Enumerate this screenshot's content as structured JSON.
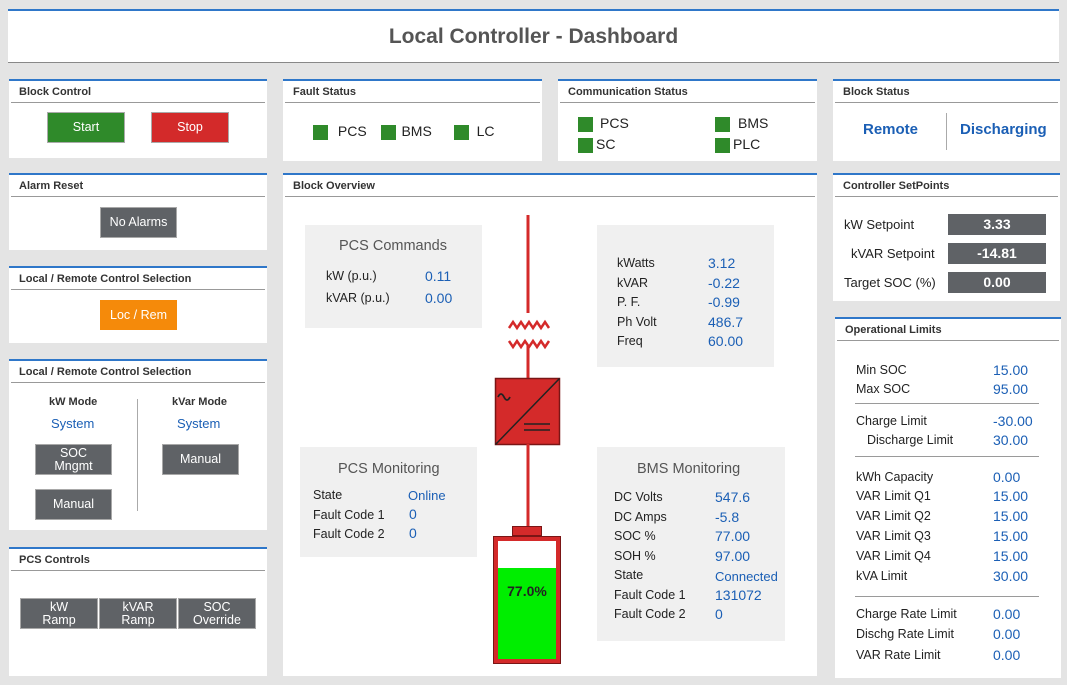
{
  "header": {
    "title": "Local Controller - Dashboard"
  },
  "block_control": {
    "title": "Block Control",
    "start_label": "Start",
    "stop_label": "Stop"
  },
  "fault_status": {
    "title": "Fault Status",
    "items": [
      "PCS",
      "BMS",
      "LC"
    ]
  },
  "communication_status": {
    "title": "Communication Status",
    "items": [
      "PCS",
      "BMS",
      "SC",
      "PLC"
    ]
  },
  "block_status": {
    "title": "Block Status",
    "mode": "Remote",
    "state": "Discharging"
  },
  "alarm_reset": {
    "title": "Alarm Reset",
    "button_label": "No Alarms"
  },
  "loc_rem": {
    "title": "Local / Remote Control Selection",
    "button_label": "Loc / Rem"
  },
  "mode_select": {
    "title": "Local / Remote Control Selection",
    "kw_mode_label": "kW Mode",
    "kw_mode_value": "System",
    "kvar_mode_label": "kVar Mode",
    "kvar_mode_value": "System",
    "soc_mngmt_label": "SOC Mngmt",
    "manual_label": "Manual",
    "kvar_manual_label": "Manual"
  },
  "pcs_controls": {
    "title": "PCS Controls",
    "kw_ramp": "kW Ramp",
    "kvar_ramp": "kVAR Ramp",
    "soc_override": "SOC Override"
  },
  "block_overview": {
    "title": "Block Overview",
    "pcs_commands": {
      "title": "PCS Commands",
      "rows": [
        {
          "label": "kW (p.u.)",
          "value": "0.11"
        },
        {
          "label": "kVAR (p.u.)",
          "value": "0.00"
        }
      ]
    },
    "grid_meter": {
      "rows": [
        {
          "label": "kWatts",
          "value": "3.12"
        },
        {
          "label": "kVAR",
          "value": "-0.22"
        },
        {
          "label": "P. F.",
          "value": "-0.99"
        },
        {
          "label": "Ph Volt",
          "value": "486.7"
        },
        {
          "label": "Freq",
          "value": "60.00"
        }
      ]
    },
    "pcs_monitoring": {
      "title": "PCS Monitoring",
      "rows": [
        {
          "label": "State",
          "value": "Online"
        },
        {
          "label": "Fault Code 1",
          "value": "0"
        },
        {
          "label": "Fault Code 2",
          "value": "0"
        }
      ]
    },
    "bms_monitoring": {
      "title": "BMS Monitoring",
      "rows": [
        {
          "label": "DC Volts",
          "value": "547.6"
        },
        {
          "label": "DC Amps",
          "value": "-5.8"
        },
        {
          "label": "SOC %",
          "value": "77.00"
        },
        {
          "label": "SOH %",
          "value": "97.00"
        },
        {
          "label": "State",
          "value": "Connected"
        },
        {
          "label": "Fault Code 1",
          "value": "131072"
        },
        {
          "label": "Fault Code 2",
          "value": "0"
        }
      ]
    },
    "battery": {
      "label": "77.0%",
      "fill_fraction": 0.77
    }
  },
  "setpoints": {
    "title": "Controller SetPoints",
    "rows": [
      {
        "label": "kW Setpoint",
        "value": "3.33"
      },
      {
        "label": "kVAR Setpoint",
        "value": "-14.81"
      },
      {
        "label": "Target SOC (%)",
        "value": "0.00"
      }
    ]
  },
  "limits": {
    "title": "Operational Limits",
    "rows": [
      {
        "label": "Min SOC",
        "value": "15.00"
      },
      {
        "label": "Max SOC",
        "value": "95.00"
      },
      {
        "label": "Charge Limit",
        "value": "-30.00"
      },
      {
        "label": "Discharge Limit",
        "value": "30.00"
      },
      {
        "label": "kWh Capacity",
        "value": "0.00"
      },
      {
        "label": "VAR Limit Q1",
        "value": "15.00"
      },
      {
        "label": "VAR Limit Q2",
        "value": "15.00"
      },
      {
        "label": "VAR Limit Q3",
        "value": "15.00"
      },
      {
        "label": "VAR Limit Q4",
        "value": "15.00"
      },
      {
        "label": "kVA Limit",
        "value": "30.00"
      },
      {
        "label": "Charge Rate Limit",
        "value": "0.00"
      },
      {
        "label": "Dischg Rate Limit",
        "value": "0.00"
      },
      {
        "label": "VAR Rate Limit",
        "value": "0.00"
      }
    ]
  },
  "colors": {
    "accent": "#2f77c9",
    "green": "#2f8a2a",
    "red": "#d32a2a",
    "orange": "#f58a0a",
    "value_blue": "#1b5fb5",
    "battery_fill": "#00ee00"
  }
}
